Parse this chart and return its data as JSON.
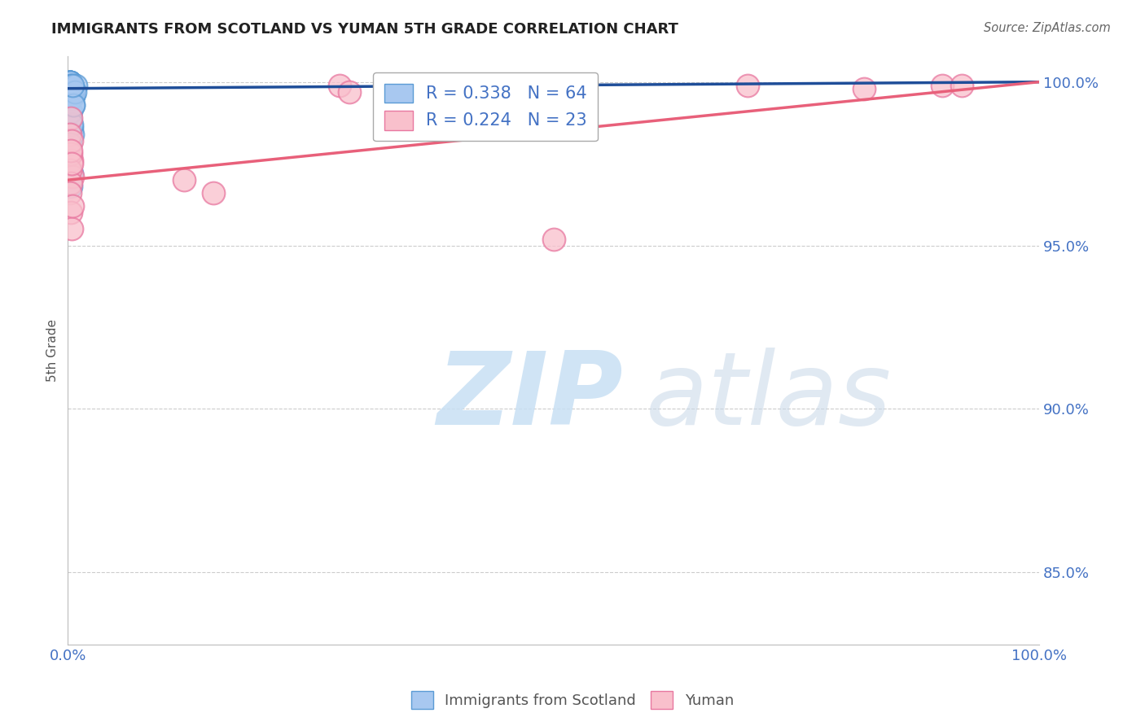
{
  "title": "IMMIGRANTS FROM SCOTLAND VS YUMAN 5TH GRADE CORRELATION CHART",
  "source": "Source: ZipAtlas.com",
  "ylabel": "5th Grade",
  "xlim": [
    0.0,
    1.0
  ],
  "ylim": [
    0.828,
    1.008
  ],
  "yticks": [
    0.85,
    0.9,
    0.95,
    1.0
  ],
  "ytick_labels": [
    "85.0%",
    "90.0%",
    "95.0%",
    "100.0%"
  ],
  "xticks": [
    0.0,
    1.0
  ],
  "xtick_labels": [
    "0.0%",
    "100.0%"
  ],
  "blue_R": 0.338,
  "blue_N": 64,
  "pink_R": 0.224,
  "pink_N": 23,
  "blue_color": "#A8C8F0",
  "blue_edge": "#5B9BD5",
  "pink_color": "#F9C0CC",
  "pink_edge": "#E878A0",
  "blue_line_color": "#1F4E99",
  "pink_line_color": "#E8607A",
  "grid_color": "#CCCCCC",
  "axis_color": "#BBBBBB",
  "tick_color": "#4472C4",
  "blue_label": "Immigrants from Scotland",
  "pink_label": "Yuman",
  "blue_x": [
    0.003,
    0.004,
    0.002,
    0.005,
    0.003,
    0.004,
    0.006,
    0.002,
    0.003,
    0.002,
    0.004,
    0.005,
    0.003,
    0.004,
    0.002,
    0.003,
    0.005,
    0.004,
    0.002,
    0.003,
    0.006,
    0.004,
    0.003,
    0.005,
    0.002,
    0.004,
    0.003,
    0.002,
    0.005,
    0.004,
    0.003,
    0.006,
    0.002,
    0.004,
    0.003,
    0.005,
    0.002,
    0.004,
    0.003,
    0.005,
    0.002,
    0.003,
    0.004,
    0.005,
    0.006,
    0.003,
    0.002,
    0.004,
    0.005,
    0.003,
    0.004,
    0.002,
    0.003,
    0.005,
    0.004,
    0.003,
    0.006,
    0.002,
    0.004,
    0.003,
    0.008,
    0.007,
    0.006,
    0.005
  ],
  "blue_y": [
    0.999,
    0.998,
    1.0,
    0.997,
    0.999,
    0.998,
    0.996,
    1.0,
    0.999,
    1.0,
    0.998,
    0.997,
    0.999,
    0.998,
    1.0,
    0.999,
    0.997,
    0.998,
    1.0,
    0.999,
    0.996,
    0.998,
    0.999,
    0.997,
    1.0,
    0.998,
    0.999,
    1.0,
    0.997,
    0.998,
    0.999,
    0.996,
    1.0,
    0.998,
    0.999,
    0.997,
    1.0,
    0.998,
    0.999,
    0.997,
    1.0,
    0.999,
    0.998,
    0.997,
    0.996,
    0.999,
    1.0,
    0.998,
    0.997,
    0.999,
    0.986,
    0.989,
    0.991,
    0.984,
    0.987,
    0.995,
    0.993,
    0.981,
    0.972,
    0.968,
    0.999,
    0.997,
    0.993,
    0.999
  ],
  "pink_x": [
    0.003,
    0.002,
    0.004,
    0.005,
    0.003,
    0.002,
    0.004,
    0.003,
    0.12,
    0.15,
    0.28,
    0.29,
    0.5,
    0.7,
    0.82,
    0.9,
    0.92,
    0.002,
    0.003,
    0.004,
    0.003,
    0.004,
    0.005
  ],
  "pink_y": [
    0.989,
    0.984,
    0.976,
    0.971,
    0.978,
    0.973,
    0.982,
    0.969,
    0.97,
    0.966,
    0.999,
    0.997,
    0.952,
    0.999,
    0.998,
    0.999,
    0.999,
    0.966,
    0.96,
    0.955,
    0.979,
    0.975,
    0.962
  ],
  "pink_line_x0": 0.0,
  "pink_line_y0": 0.97,
  "pink_line_x1": 1.0,
  "pink_line_y1": 1.0,
  "blue_line_x0": 0.0,
  "blue_line_y0": 0.998,
  "blue_line_x1": 1.0,
  "blue_line_y1": 1.0
}
